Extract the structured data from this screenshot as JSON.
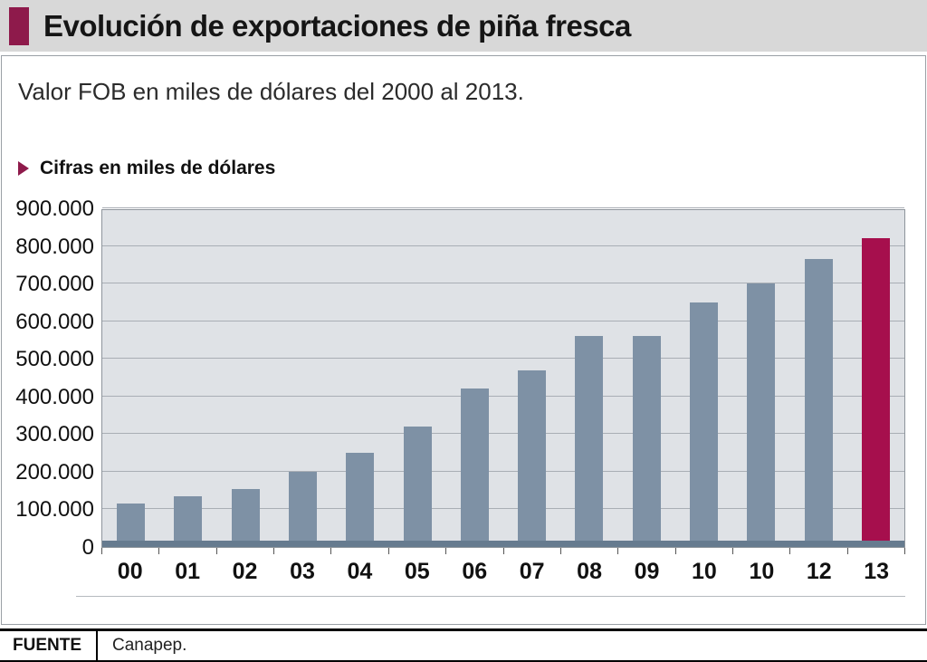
{
  "header": {
    "title": "Evolución de exportaciones de piña fresca",
    "accent_color": "#8e1a4b",
    "background": "#d8d8d8"
  },
  "subtitle": "Valor FOB en miles de dólares del 2000 al 2013.",
  "legend": {
    "label": "Cifras en miles de dólares"
  },
  "chart_data": {
    "type": "bar",
    "title": "Evolución de exportaciones de piña fresca",
    "subtitle": "Valor FOB en miles de dólares del 2000 al 2013.",
    "unit": "miles de dólares",
    "categories": [
      "00",
      "01",
      "02",
      "03",
      "04",
      "05",
      "06",
      "07",
      "08",
      "09",
      "10",
      "10",
      "12",
      "13"
    ],
    "values": [
      115000,
      135000,
      155000,
      200000,
      250000,
      320000,
      420000,
      470000,
      560000,
      560000,
      650000,
      700000,
      765000,
      820000
    ],
    "ylim": [
      0,
      900000
    ],
    "ytick_step": 100000,
    "ytick_labels": [
      "0",
      "100.000",
      "200.000",
      "300.000",
      "400.000",
      "500.000",
      "600.000",
      "700.000",
      "800.000",
      "900.000"
    ],
    "grid": true,
    "legend_position": "none",
    "bar_color": "#7e91a5",
    "highlight_index": 13,
    "highlight_color": "#a60f4d",
    "plot_background": "#dfe2e6",
    "baseline_color": "#667b8f"
  },
  "footer": {
    "source_label": "FUENTE",
    "source_value": "Canapep."
  }
}
